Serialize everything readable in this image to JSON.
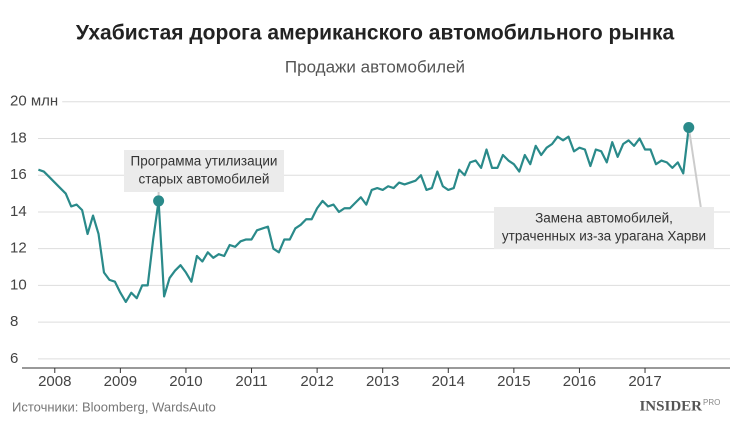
{
  "chart_data": {
    "type": "line",
    "title": "Ухабистая дорога американского автомобильного рынка",
    "subtitle": "Продажи автомобилей",
    "source": "Источники: Bloomberg, WardsAuto",
    "logo": "INSIDER",
    "logo_sup": "PRO",
    "xlim": [
      2007.5,
      2018.25
    ],
    "ylim": [
      5.5,
      20.5
    ],
    "xticks": [
      2008,
      2009,
      2010,
      2011,
      2012,
      2013,
      2014,
      2015,
      2016,
      2017
    ],
    "yticks": [
      {
        "value": 20,
        "label": "20 млн"
      },
      18,
      16,
      14,
      12,
      10,
      8,
      6
    ],
    "grid": true,
    "series": [
      {
        "name": "Продажи автомобилей",
        "color": "#2a8a8a",
        "x": [
          2007.75,
          2007.833,
          2007.917,
          2008,
          2008.083,
          2008.167,
          2008.25,
          2008.333,
          2008.417,
          2008.5,
          2008.583,
          2008.667,
          2008.75,
          2008.833,
          2008.917,
          2009,
          2009.083,
          2009.167,
          2009.25,
          2009.333,
          2009.417,
          2009.5,
          2009.583,
          2009.667,
          2009.75,
          2009.833,
          2009.917,
          2010,
          2010.083,
          2010.167,
          2010.25,
          2010.333,
          2010.417,
          2010.5,
          2010.583,
          2010.667,
          2010.75,
          2010.833,
          2010.917,
          2011,
          2011.083,
          2011.167,
          2011.25,
          2011.333,
          2011.417,
          2011.5,
          2011.583,
          2011.667,
          2011.75,
          2011.833,
          2011.917,
          2012,
          2012.083,
          2012.167,
          2012.25,
          2012.333,
          2012.417,
          2012.5,
          2012.583,
          2012.667,
          2012.75,
          2012.833,
          2012.917,
          2013,
          2013.083,
          2013.167,
          2013.25,
          2013.333,
          2013.417,
          2013.5,
          2013.583,
          2013.667,
          2013.75,
          2013.833,
          2013.917,
          2014,
          2014.083,
          2014.167,
          2014.25,
          2014.333,
          2014.417,
          2014.5,
          2014.583,
          2014.667,
          2014.75,
          2014.833,
          2014.917,
          2015,
          2015.083,
          2015.167,
          2015.25,
          2015.333,
          2015.417,
          2015.5,
          2015.583,
          2015.667,
          2015.75,
          2015.833,
          2015.917,
          2016,
          2016.083,
          2016.167,
          2016.25,
          2016.333,
          2016.417,
          2016.5,
          2016.583,
          2016.667,
          2016.75,
          2016.833,
          2016.917,
          2017,
          2017.083,
          2017.167,
          2017.25,
          2017.333,
          2017.417,
          2017.5,
          2017.583,
          2017.667
        ],
        "values": [
          16.3,
          16.2,
          15.9,
          15.6,
          15.3,
          15.0,
          14.3,
          14.4,
          14.1,
          12.8,
          13.8,
          12.8,
          10.7,
          10.3,
          10.2,
          9.6,
          9.1,
          9.6,
          9.3,
          10.0,
          10.0,
          12.5,
          14.6,
          9.4,
          10.4,
          10.8,
          11.1,
          10.7,
          10.2,
          11.6,
          11.3,
          11.8,
          11.5,
          11.7,
          11.6,
          12.2,
          12.1,
          12.4,
          12.5,
          12.5,
          13.0,
          13.1,
          13.2,
          12.0,
          11.8,
          12.5,
          12.5,
          13.1,
          13.3,
          13.6,
          13.6,
          14.2,
          14.6,
          14.3,
          14.4,
          14.0,
          14.2,
          14.2,
          14.5,
          14.8,
          14.4,
          15.2,
          15.3,
          15.2,
          15.4,
          15.3,
          15.6,
          15.5,
          15.6,
          15.7,
          16.0,
          15.2,
          15.3,
          16.2,
          15.4,
          15.2,
          15.3,
          16.3,
          16.0,
          16.7,
          16.8,
          16.4,
          17.4,
          16.4,
          16.4,
          17.1,
          16.8,
          16.6,
          16.2,
          17.1,
          16.6,
          17.6,
          17.1,
          17.5,
          17.7,
          18.1,
          17.9,
          18.1,
          17.3,
          17.5,
          17.4,
          16.5,
          17.4,
          17.3,
          16.7,
          17.8,
          17.0,
          17.7,
          17.9,
          17.6,
          18.0,
          17.4,
          17.4,
          16.6,
          16.8,
          16.7,
          16.4,
          16.7,
          16.1,
          18.6
        ]
      }
    ],
    "annotations": [
      {
        "text": [
          "Программа утилизации",
          "старых автомобилей"
        ],
        "x": 2009.583
      },
      {
        "text": [
          "Замена автомобилей,",
          "утраченных из-за урагана Харви"
        ],
        "x": 2017.667
      }
    ]
  }
}
